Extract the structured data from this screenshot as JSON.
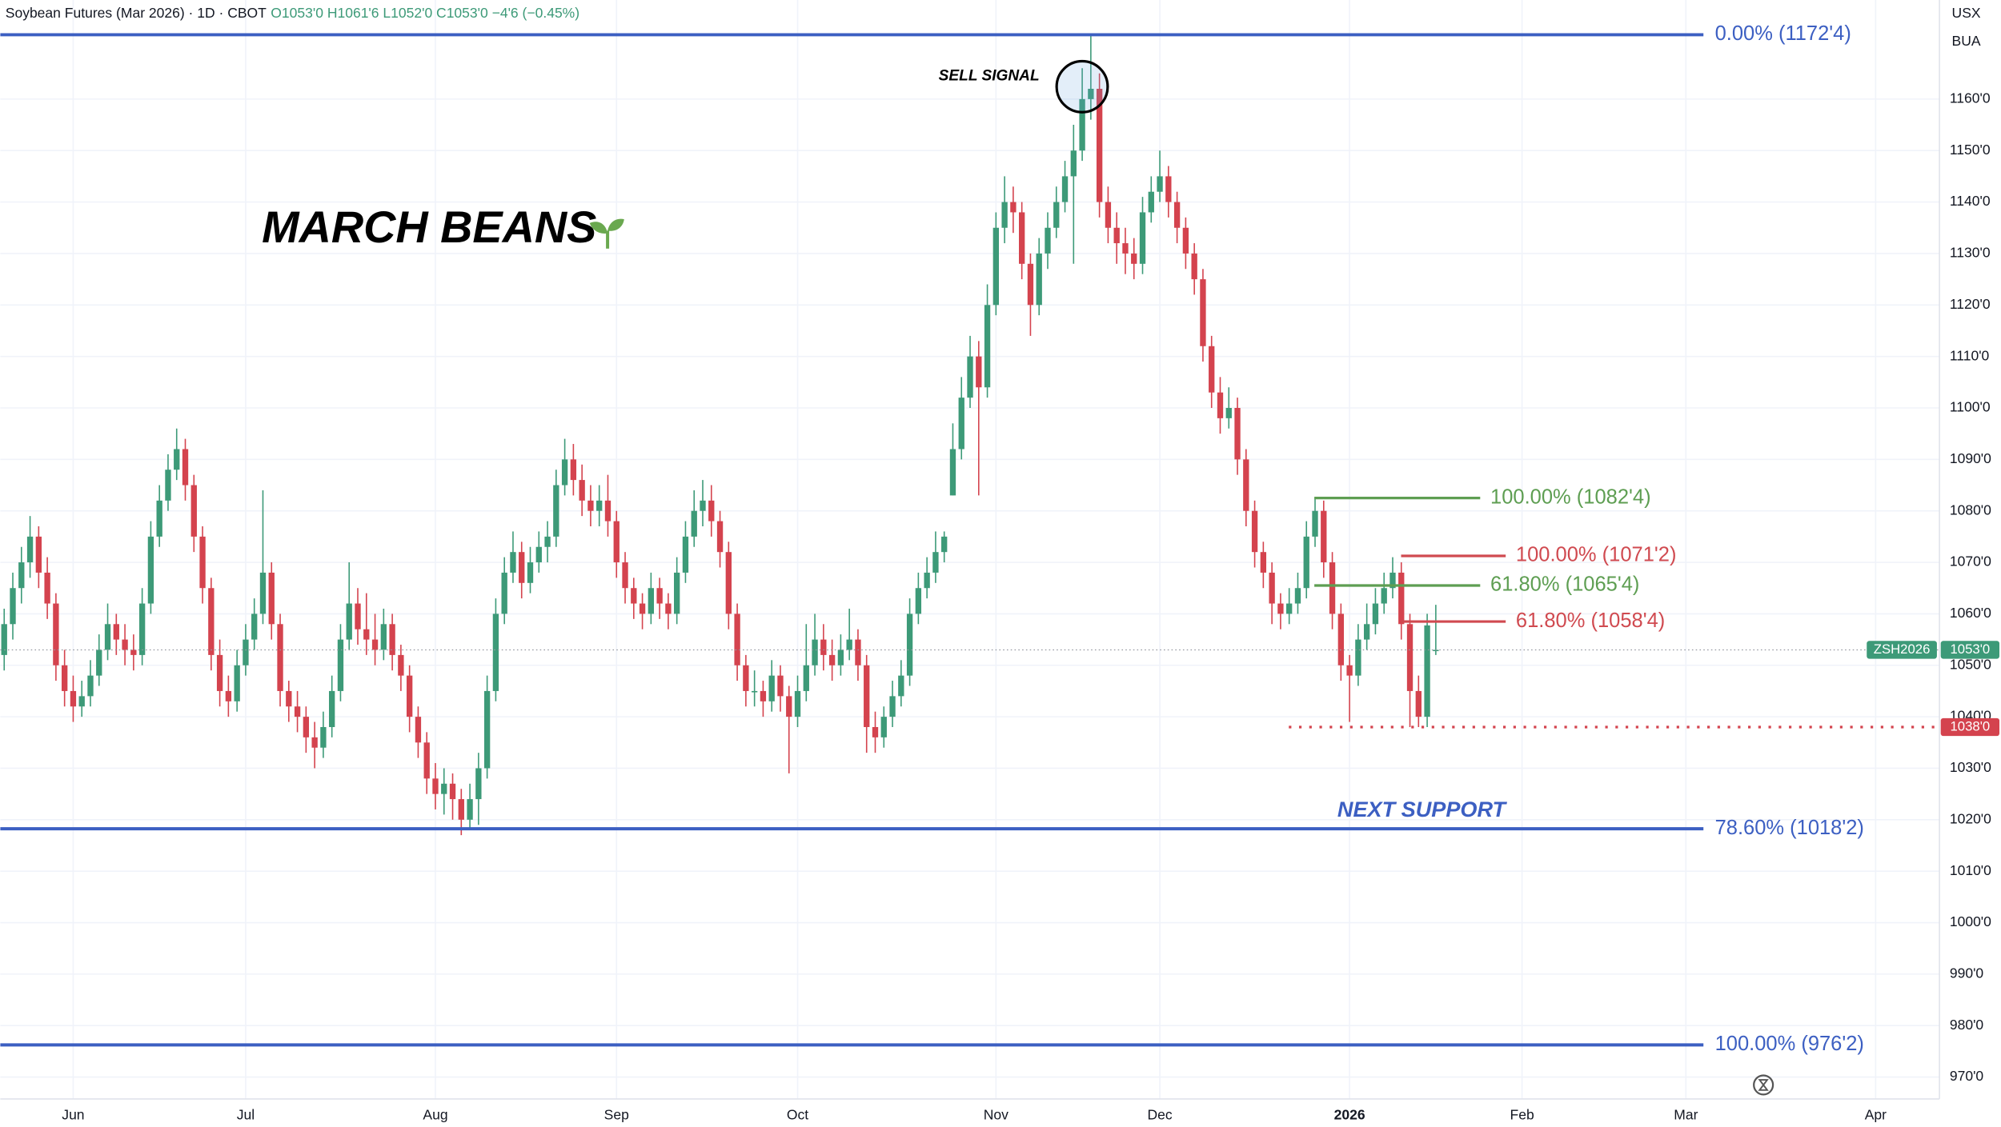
{
  "chart_data": {
    "type": "candlestick",
    "header": {
      "title": "Soybean Futures (Mar 2026) · 1D · CBOT",
      "ohlc": "O1053'0 H1061'6 L1052'0 C1053'0 −4'6 (−0.45%)",
      "currency": "USX",
      "unit": "BUA"
    },
    "title": "MARCH BEANS",
    "annotations": {
      "sell": "SELL SIGNAL",
      "support": "NEXT SUPPORT"
    },
    "up_color": "#3d9a78",
    "down_color": "#d4434e",
    "ohlc": [
      [
        1052,
        1061,
        1049,
        1058
      ],
      [
        1058,
        1068,
        1055,
        1065
      ],
      [
        1065,
        1073,
        1062,
        1070
      ],
      [
        1070,
        1079,
        1067,
        1075
      ],
      [
        1075,
        1077,
        1065,
        1068
      ],
      [
        1068,
        1071,
        1059,
        1062
      ],
      [
        1062,
        1064,
        1047,
        1050
      ],
      [
        1050,
        1053,
        1042,
        1045
      ],
      [
        1045,
        1048,
        1039,
        1042
      ],
      [
        1042,
        1047,
        1040,
        1044
      ],
      [
        1044,
        1051,
        1042,
        1048
      ],
      [
        1048,
        1056,
        1046,
        1053
      ],
      [
        1053,
        1062,
        1051,
        1058
      ],
      [
        1058,
        1060,
        1052,
        1055
      ],
      [
        1055,
        1058,
        1050,
        1053
      ],
      [
        1053,
        1056,
        1049,
        1052
      ],
      [
        1052,
        1065,
        1050,
        1062
      ],
      [
        1062,
        1078,
        1060,
        1075
      ],
      [
        1075,
        1085,
        1073,
        1082
      ],
      [
        1082,
        1091,
        1080,
        1088
      ],
      [
        1088,
        1096,
        1086,
        1092
      ],
      [
        1092,
        1094,
        1082,
        1085
      ],
      [
        1085,
        1087,
        1072,
        1075
      ],
      [
        1075,
        1077,
        1062,
        1065
      ],
      [
        1065,
        1067,
        1049,
        1052
      ],
      [
        1052,
        1055,
        1042,
        1045
      ],
      [
        1045,
        1048,
        1040,
        1043
      ],
      [
        1043,
        1053,
        1041,
        1050
      ],
      [
        1050,
        1058,
        1048,
        1055
      ],
      [
        1055,
        1063,
        1053,
        1060
      ],
      [
        1060,
        1084,
        1058,
        1068
      ],
      [
        1068,
        1070,
        1055,
        1058
      ],
      [
        1058,
        1060,
        1042,
        1045
      ],
      [
        1045,
        1047,
        1039,
        1042
      ],
      [
        1042,
        1045,
        1037,
        1040
      ],
      [
        1040,
        1042,
        1033,
        1036
      ],
      [
        1036,
        1039,
        1030,
        1034
      ],
      [
        1034,
        1041,
        1032,
        1038
      ],
      [
        1038,
        1048,
        1036,
        1045
      ],
      [
        1045,
        1058,
        1043,
        1055
      ],
      [
        1055,
        1070,
        1053,
        1062
      ],
      [
        1062,
        1065,
        1054,
        1057
      ],
      [
        1057,
        1064,
        1052,
        1055
      ],
      [
        1055,
        1060,
        1050,
        1053
      ],
      [
        1053,
        1061,
        1051,
        1058
      ],
      [
        1058,
        1060,
        1049,
        1052
      ],
      [
        1052,
        1054,
        1045,
        1048
      ],
      [
        1048,
        1050,
        1037,
        1040
      ],
      [
        1040,
        1042,
        1032,
        1035
      ],
      [
        1035,
        1037,
        1025,
        1028
      ],
      [
        1028,
        1031,
        1022,
        1025
      ],
      [
        1025,
        1030,
        1021,
        1027
      ],
      [
        1027,
        1029,
        1020,
        1024
      ],
      [
        1024,
        1026,
        1017,
        1020
      ],
      [
        1020,
        1027,
        1018,
        1024
      ],
      [
        1024,
        1033,
        1019,
        1030
      ],
      [
        1030,
        1048,
        1028,
        1045
      ],
      [
        1045,
        1063,
        1043,
        1060
      ],
      [
        1060,
        1071,
        1058,
        1068
      ],
      [
        1068,
        1076,
        1066,
        1072
      ],
      [
        1072,
        1074,
        1063,
        1066
      ],
      [
        1066,
        1073,
        1064,
        1070
      ],
      [
        1070,
        1076,
        1068,
        1073
      ],
      [
        1073,
        1078,
        1070,
        1075
      ],
      [
        1075,
        1088,
        1073,
        1085
      ],
      [
        1085,
        1094,
        1083,
        1090
      ],
      [
        1090,
        1093,
        1083,
        1086
      ],
      [
        1086,
        1089,
        1079,
        1082
      ],
      [
        1082,
        1085,
        1077,
        1080
      ],
      [
        1080,
        1085,
        1077,
        1082
      ],
      [
        1082,
        1087,
        1075,
        1078
      ],
      [
        1078,
        1080,
        1067,
        1070
      ],
      [
        1070,
        1072,
        1062,
        1065
      ],
      [
        1065,
        1067,
        1059,
        1062
      ],
      [
        1062,
        1064,
        1057,
        1060
      ],
      [
        1060,
        1068,
        1058,
        1065
      ],
      [
        1065,
        1067,
        1059,
        1062
      ],
      [
        1062,
        1064,
        1057,
        1060
      ],
      [
        1060,
        1071,
        1058,
        1068
      ],
      [
        1068,
        1078,
        1066,
        1075
      ],
      [
        1075,
        1084,
        1073,
        1080
      ],
      [
        1080,
        1086,
        1077,
        1082
      ],
      [
        1082,
        1085,
        1075,
        1078
      ],
      [
        1078,
        1080,
        1069,
        1072
      ],
      [
        1072,
        1074,
        1057,
        1060
      ],
      [
        1060,
        1062,
        1047,
        1050
      ],
      [
        1050,
        1052,
        1042,
        1045
      ],
      [
        1045,
        1049,
        1042,
        1045
      ],
      [
        1045,
        1047,
        1040,
        1043
      ],
      [
        1043,
        1051,
        1041,
        1048
      ],
      [
        1048,
        1050,
        1041,
        1044
      ],
      [
        1044,
        1046,
        1029,
        1040
      ],
      [
        1040,
        1048,
        1038,
        1045
      ],
      [
        1045,
        1058,
        1043,
        1050
      ],
      [
        1050,
        1060,
        1048,
        1055
      ],
      [
        1055,
        1058,
        1049,
        1052
      ],
      [
        1052,
        1055,
        1047,
        1050
      ],
      [
        1050,
        1056,
        1048,
        1053
      ],
      [
        1053,
        1061,
        1051,
        1055
      ],
      [
        1055,
        1057,
        1047,
        1050
      ],
      [
        1050,
        1052,
        1033,
        1038
      ],
      [
        1038,
        1041,
        1033,
        1036
      ],
      [
        1036,
        1042,
        1034,
        1040
      ],
      [
        1040,
        1047,
        1038,
        1044
      ],
      [
        1044,
        1051,
        1042,
        1048
      ],
      [
        1048,
        1063,
        1046,
        1060
      ],
      [
        1060,
        1068,
        1058,
        1065
      ],
      [
        1065,
        1071,
        1063,
        1068
      ],
      [
        1068,
        1076,
        1066,
        1072
      ],
      [
        1072,
        1076,
        1070,
        1075
      ],
      [
        1083,
        1097,
        1083,
        1092
      ],
      [
        1092,
        1106,
        1090,
        1102
      ],
      [
        1102,
        1114,
        1100,
        1110
      ],
      [
        1110,
        1113,
        1083,
        1104
      ],
      [
        1104,
        1124,
        1102,
        1120
      ],
      [
        1120,
        1138,
        1118,
        1135
      ],
      [
        1135,
        1145,
        1132,
        1140
      ],
      [
        1140,
        1143,
        1134,
        1138
      ],
      [
        1138,
        1140,
        1125,
        1128
      ],
      [
        1128,
        1130,
        1114,
        1120
      ],
      [
        1120,
        1133,
        1118,
        1130
      ],
      [
        1130,
        1138,
        1127,
        1135
      ],
      [
        1135,
        1143,
        1133,
        1140
      ],
      [
        1140,
        1148,
        1138,
        1145
      ],
      [
        1145,
        1155,
        1128,
        1150
      ],
      [
        1150,
        1166,
        1148,
        1160
      ],
      [
        1160,
        1172.5,
        1156,
        1162
      ],
      [
        1162,
        1165,
        1137,
        1140
      ],
      [
        1140,
        1143,
        1132,
        1135
      ],
      [
        1135,
        1138,
        1128,
        1132
      ],
      [
        1132,
        1135,
        1126,
        1130
      ],
      [
        1130,
        1133,
        1125,
        1128
      ],
      [
        1128,
        1141,
        1126,
        1138
      ],
      [
        1138,
        1145,
        1136,
        1142
      ],
      [
        1142,
        1150,
        1140,
        1145
      ],
      [
        1145,
        1147,
        1137,
        1140
      ],
      [
        1140,
        1142,
        1132,
        1135
      ],
      [
        1135,
        1137,
        1127,
        1130
      ],
      [
        1130,
        1132,
        1122,
        1125
      ],
      [
        1125,
        1127,
        1109,
        1112
      ],
      [
        1112,
        1114,
        1100,
        1103
      ],
      [
        1103,
        1106,
        1095,
        1098
      ],
      [
        1098,
        1104,
        1096,
        1100
      ],
      [
        1100,
        1102,
        1087,
        1090
      ],
      [
        1090,
        1092,
        1077,
        1080
      ],
      [
        1080,
        1082,
        1069,
        1072
      ],
      [
        1072,
        1074,
        1065,
        1068
      ],
      [
        1068,
        1070,
        1058,
        1062
      ],
      [
        1062,
        1064,
        1057,
        1060
      ],
      [
        1060,
        1065,
        1058,
        1062
      ],
      [
        1062,
        1068,
        1060,
        1065
      ],
      [
        1065,
        1078,
        1063,
        1075
      ],
      [
        1075,
        1082.5,
        1073,
        1080
      ],
      [
        1080,
        1082,
        1067,
        1070
      ],
      [
        1070,
        1072,
        1057,
        1060
      ],
      [
        1060,
        1062,
        1047,
        1050
      ],
      [
        1050,
        1052,
        1039,
        1048
      ],
      [
        1048,
        1058,
        1046,
        1055
      ],
      [
        1055,
        1062,
        1053,
        1058
      ],
      [
        1058,
        1065,
        1056,
        1062
      ],
      [
        1062,
        1068,
        1060,
        1065
      ],
      [
        1065,
        1071,
        1063,
        1068
      ],
      [
        1068,
        1070,
        1055,
        1058
      ],
      [
        1058,
        1060,
        1038,
        1045
      ],
      [
        1045,
        1048,
        1038,
        1040
      ],
      [
        1040,
        1060,
        1038,
        1057.75
      ],
      [
        1053,
        1061.75,
        1052,
        1053
      ]
    ],
    "xlim": [
      -0.45,
      224.4
    ],
    "xticks": [
      {
        "value": 8,
        "label": "Jun"
      },
      {
        "value": 28,
        "label": "Jul"
      },
      {
        "value": 50,
        "label": "Aug"
      },
      {
        "value": 71,
        "label": "Sep"
      },
      {
        "value": 92,
        "label": "Oct"
      },
      {
        "value": 115,
        "label": "Nov"
      },
      {
        "value": 134,
        "label": "Dec"
      },
      {
        "value": 156,
        "label": "2026"
      },
      {
        "value": 176,
        "label": "Feb"
      },
      {
        "value": 195,
        "label": "Mar"
      },
      {
        "value": 217,
        "label": "Apr"
      }
    ],
    "ylim": [
      965.75,
      1179.25
    ],
    "yticks": [
      {
        "value": 970,
        "label": "970'0"
      },
      {
        "value": 980,
        "label": "980'0"
      },
      {
        "value": 990,
        "label": "990'0"
      },
      {
        "value": 1000,
        "label": "1000'0"
      },
      {
        "value": 1010,
        "label": "1010'0"
      },
      {
        "value": 1020,
        "label": "1020'0"
      },
      {
        "value": 1030,
        "label": "1030'0"
      },
      {
        "value": 1040,
        "label": "1040'0"
      },
      {
        "value": 1050,
        "label": "1050'0"
      },
      {
        "value": 1060,
        "label": "1060'0"
      },
      {
        "value": 1070,
        "label": "1070'0"
      },
      {
        "value": 1080,
        "label": "1080'0"
      },
      {
        "value": 1090,
        "label": "1090'0"
      },
      {
        "value": 1100,
        "label": "1100'0"
      },
      {
        "value": 1110,
        "label": "1110'0"
      },
      {
        "value": 1120,
        "label": "1120'0"
      },
      {
        "value": 1130,
        "label": "1130'0"
      },
      {
        "value": 1140,
        "label": "1140'0"
      },
      {
        "value": 1150,
        "label": "1150'0"
      },
      {
        "value": 1160,
        "label": "1160'0"
      }
    ],
    "grid": true,
    "fib_main": {
      "color": "#3c5fc2",
      "levels": [
        {
          "value": 1172.5,
          "label": "0.00% (1172'4)"
        },
        {
          "value": 1018.25,
          "label": "78.60% (1018'2)"
        },
        {
          "value": 976.25,
          "label": "100.00% (976'2)"
        }
      ]
    },
    "fib_green": {
      "color": "#5e9e52",
      "levels": [
        {
          "value": 1082.5,
          "label": "100.00% (1082'4)"
        },
        {
          "value": 1065.5,
          "label": "61.80% (1065'4)"
        }
      ]
    },
    "fib_red": {
      "color": "#d04a50",
      "levels": [
        {
          "value": 1071.25,
          "label": "100.00% (1071'2)"
        },
        {
          "value": 1058.5,
          "label": "61.80% (1058'4)"
        }
      ]
    },
    "last_price": {
      "symbol": "ZSH2026",
      "value": 1053,
      "label": "1053'0",
      "color": "#3d9a78"
    },
    "support_price": {
      "value": 1038,
      "label": "1038'0",
      "color": "#d4434e"
    }
  }
}
